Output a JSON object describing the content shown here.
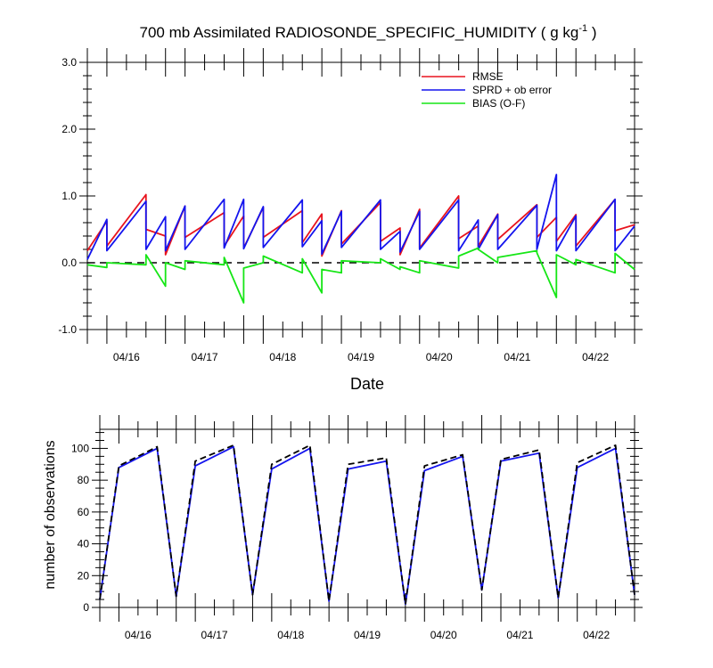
{
  "chart_data": [
    {
      "type": "line",
      "title": "700 mb Assimilated RADIOSONDE_SPECIFIC_HUMIDITY ( g kg",
      "title_units_sup": "-1",
      "title_close": " )",
      "xlabel": "Date",
      "ylabel": "",
      "ylim": [
        -1.0,
        3.0
      ],
      "yticks": [
        "3.0",
        "2.0",
        "1.0",
        "0.0",
        "-1.0"
      ],
      "ytick_values": [
        3.0,
        2.0,
        1.0,
        0.0,
        -1.0
      ],
      "xlim": [
        0,
        84
      ],
      "xticks": [
        "04/16",
        "04/17",
        "04/18",
        "04/19",
        "04/20",
        "04/21",
        "04/22"
      ],
      "xtick_values": [
        6,
        18,
        30,
        42,
        54,
        66,
        78
      ],
      "zero_line": true,
      "legend_position": "top-right",
      "colors": {
        "RMSE": "#e8141e",
        "SPRD + ob error": "#1414ee",
        "BIAS (O-F)": "#16e616"
      },
      "series": [
        {
          "name": "RMSE",
          "color": "#e8141e",
          "x": [
            0,
            3,
            3,
            9,
            9,
            12,
            12,
            15,
            15,
            21,
            21,
            24,
            24,
            27,
            27,
            33,
            33,
            36,
            36,
            39,
            39,
            45,
            45,
            48,
            48,
            51,
            51,
            57,
            57,
            60,
            60,
            63,
            63,
            69,
            69,
            72,
            72,
            75,
            75,
            81,
            81,
            84
          ],
          "y": [
            0.18,
            0.62,
            0.25,
            1.02,
            0.5,
            0.4,
            0.12,
            0.85,
            0.38,
            0.75,
            0.25,
            0.7,
            0.22,
            0.83,
            0.38,
            0.78,
            0.3,
            0.73,
            0.1,
            0.78,
            0.28,
            0.9,
            0.32,
            0.52,
            0.12,
            0.8,
            0.22,
            1.0,
            0.36,
            0.55,
            0.25,
            0.73,
            0.35,
            0.87,
            0.38,
            0.68,
            0.32,
            0.72,
            0.25,
            0.95,
            0.48,
            0.57
          ]
        },
        {
          "name": "SPRD + ob error",
          "color": "#1414ee",
          "x": [
            0,
            3,
            3,
            9,
            9,
            12,
            12,
            15,
            15,
            21,
            21,
            24,
            24,
            27,
            27,
            33,
            33,
            36,
            36,
            39,
            39,
            45,
            45,
            48,
            48,
            51,
            51,
            57,
            57,
            60,
            60,
            63,
            63,
            69,
            69,
            72,
            72,
            75,
            75,
            81,
            81,
            84
          ],
          "y": [
            0.05,
            0.65,
            0.18,
            0.92,
            0.2,
            0.69,
            0.18,
            0.85,
            0.2,
            0.95,
            0.22,
            0.95,
            0.21,
            0.84,
            0.23,
            0.94,
            0.24,
            0.63,
            0.13,
            0.77,
            0.23,
            0.94,
            0.2,
            0.47,
            0.16,
            0.77,
            0.2,
            0.94,
            0.18,
            0.64,
            0.2,
            0.72,
            0.2,
            0.86,
            0.2,
            1.32,
            0.18,
            0.7,
            0.18,
            0.95,
            0.18,
            0.55
          ]
        },
        {
          "name": "BIAS (O-F)",
          "color": "#16e616",
          "x": [
            0,
            3,
            3,
            9,
            9,
            12,
            12,
            15,
            15,
            21,
            21,
            24,
            24,
            27,
            27,
            33,
            33,
            36,
            36,
            39,
            39,
            45,
            45,
            48,
            48,
            51,
            51,
            57,
            57,
            60,
            60,
            63,
            63,
            69,
            69,
            72,
            72,
            75,
            75,
            81,
            81,
            84
          ],
          "y": [
            -0.03,
            -0.07,
            0.0,
            -0.03,
            0.12,
            -0.35,
            0.0,
            -0.1,
            0.03,
            -0.03,
            0.08,
            -0.6,
            -0.08,
            0.0,
            0.1,
            -0.15,
            0.06,
            -0.45,
            -0.1,
            -0.15,
            0.03,
            0.0,
            0.06,
            -0.1,
            -0.06,
            -0.15,
            0.03,
            -0.08,
            0.1,
            0.22,
            0.2,
            0.0,
            0.08,
            0.18,
            0.15,
            -0.52,
            0.12,
            -0.03,
            0.05,
            -0.15,
            0.14,
            -0.1
          ]
        }
      ]
    },
    {
      "type": "line",
      "title": "",
      "xlabel": "",
      "ylabel": "number of observations",
      "ylim": [
        0,
        112
      ],
      "yticks": [
        "0",
        "20",
        "40",
        "60",
        "80",
        "100"
      ],
      "ytick_values": [
        0,
        20,
        40,
        60,
        80,
        100
      ],
      "xlim": [
        0,
        84
      ],
      "xticks": [
        "04/16",
        "04/17",
        "04/18",
        "04/19",
        "04/20",
        "04/21",
        "04/22"
      ],
      "xtick_values": [
        6,
        18,
        30,
        42,
        54,
        66,
        78
      ],
      "colors": {
        "observations": "#1414ee",
        "reference": "#000000"
      },
      "series": [
        {
          "name": "",
          "color": "#1414ee",
          "dash": false,
          "x": [
            0,
            3,
            9,
            12,
            15,
            21,
            24,
            27,
            33,
            36,
            39,
            45,
            48,
            51,
            57,
            60,
            63,
            69,
            72,
            75,
            81,
            84
          ],
          "y": [
            5,
            88,
            100,
            7,
            89,
            101,
            8,
            87,
            100,
            4,
            87,
            92,
            2,
            86,
            95,
            11,
            92,
            97,
            6,
            88,
            100,
            8
          ]
        },
        {
          "name": "",
          "color": "#000000",
          "dash": true,
          "x": [
            0,
            3,
            9,
            12,
            15,
            21,
            24,
            27,
            33,
            36,
            39,
            45,
            48,
            51,
            57,
            60,
            63,
            69,
            72,
            75,
            81,
            84
          ],
          "y": [
            5,
            89,
            101,
            7,
            92,
            102,
            8,
            90,
            102,
            4,
            90,
            94,
            2,
            89,
            96,
            11,
            93,
            99,
            6,
            91,
            102,
            8
          ]
        }
      ]
    }
  ]
}
